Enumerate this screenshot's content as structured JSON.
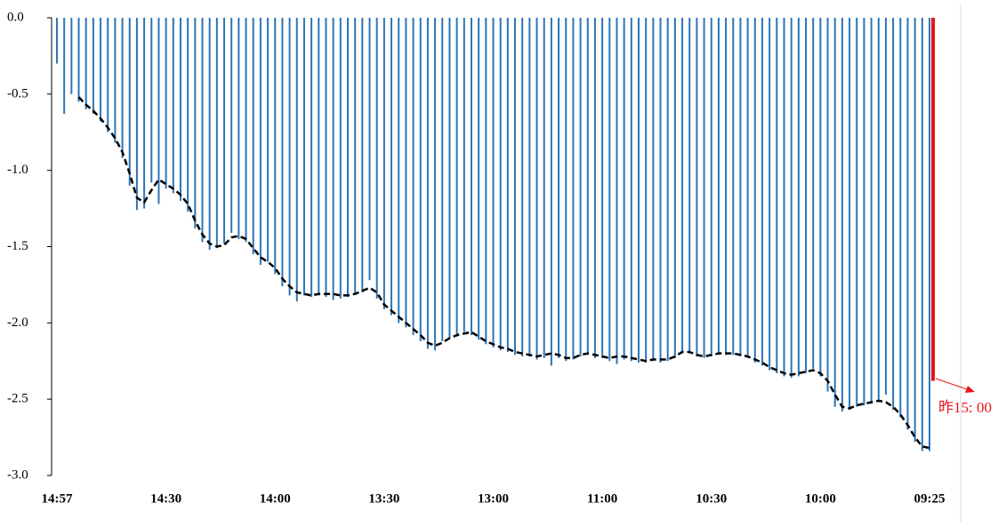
{
  "chart_data": {
    "type": "bar",
    "categories": [
      "14:57",
      null,
      null,
      null,
      null,
      null,
      null,
      null,
      null,
      null,
      null,
      null,
      null,
      null,
      null,
      "14:30",
      null,
      null,
      null,
      null,
      null,
      null,
      null,
      null,
      null,
      null,
      null,
      null,
      null,
      null,
      "14:00",
      null,
      null,
      null,
      null,
      null,
      null,
      null,
      null,
      null,
      null,
      null,
      null,
      null,
      null,
      "13:30",
      null,
      null,
      null,
      null,
      null,
      null,
      null,
      null,
      null,
      null,
      null,
      null,
      null,
      null,
      "13:00",
      null,
      null,
      null,
      null,
      null,
      null,
      null,
      null,
      null,
      null,
      null,
      null,
      null,
      null,
      "11:00",
      null,
      null,
      null,
      null,
      null,
      null,
      null,
      null,
      null,
      null,
      null,
      null,
      null,
      null,
      "10:30",
      null,
      null,
      null,
      null,
      null,
      null,
      null,
      null,
      null,
      null,
      null,
      null,
      null,
      null,
      "10:00",
      null,
      null,
      null,
      null,
      null,
      null,
      null,
      null,
      null,
      null,
      null,
      null,
      null,
      null,
      "09:25"
    ],
    "series": [
      {
        "type": "bar",
        "color": "#2e75b6",
        "values": [
          -0.3,
          -0.63,
          -0.5,
          -0.55,
          -0.6,
          -0.63,
          -0.68,
          -0.75,
          -0.82,
          -0.92,
          -1.1,
          -1.26,
          -1.25,
          -1.08,
          -1.22,
          -1.12,
          -1.15,
          -1.2,
          -1.27,
          -1.38,
          -1.47,
          -1.52,
          -1.51,
          -1.48,
          -1.41,
          -1.45,
          -1.47,
          -1.55,
          -1.62,
          -1.6,
          -1.68,
          -1.76,
          -1.82,
          -1.86,
          -1.82,
          -1.83,
          -1.82,
          -1.83,
          -1.85,
          -1.84,
          -1.83,
          -1.81,
          -1.8,
          -1.72,
          -1.84,
          -1.91,
          -1.95,
          -2.0,
          -2.03,
          -2.08,
          -2.12,
          -2.17,
          -2.18,
          -2.12,
          -2.1,
          -2.09,
          -2.06,
          -2.08,
          -2.11,
          -2.14,
          -2.16,
          -2.18,
          -2.19,
          -2.21,
          -2.22,
          -2.22,
          -2.24,
          -2.23,
          -2.28,
          -2.23,
          -2.25,
          -2.24,
          -2.22,
          -2.21,
          -2.23,
          -2.23,
          -2.25,
          -2.27,
          -2.24,
          -2.25,
          -2.26,
          -2.26,
          -2.25,
          -2.26,
          -2.25,
          -2.23,
          -2.2,
          -2.2,
          -2.22,
          -2.23,
          -2.22,
          -2.21,
          -2.21,
          -2.21,
          -2.22,
          -2.23,
          -2.26,
          -2.28,
          -2.31,
          -2.33,
          -2.35,
          -2.36,
          -2.35,
          -2.33,
          -2.3,
          -2.35,
          -2.45,
          -2.55,
          -2.58,
          -2.57,
          -2.55,
          -2.54,
          -2.53,
          -2.52,
          -2.47,
          -2.57,
          -2.62,
          -2.7,
          -2.78,
          -2.84,
          -2.84
        ]
      },
      {
        "type": "line",
        "color": "#000000",
        "dashed": true,
        "values": [
          null,
          null,
          null,
          -0.52,
          -0.57,
          -0.61,
          -0.66,
          -0.72,
          -0.79,
          -0.88,
          -1.02,
          -1.18,
          -1.21,
          -1.13,
          -1.06,
          -1.09,
          -1.12,
          -1.16,
          -1.22,
          -1.33,
          -1.42,
          -1.48,
          -1.5,
          -1.49,
          -1.44,
          -1.43,
          -1.45,
          -1.51,
          -1.57,
          -1.6,
          -1.64,
          -1.71,
          -1.76,
          -1.8,
          -1.81,
          -1.82,
          -1.81,
          -1.81,
          -1.81,
          -1.82,
          -1.82,
          -1.81,
          -1.79,
          -1.77,
          -1.8,
          -1.88,
          -1.92,
          -1.96,
          -2.0,
          -2.04,
          -2.08,
          -2.13,
          -2.15,
          -2.13,
          -2.1,
          -2.08,
          -2.07,
          -2.06,
          -2.09,
          -2.12,
          -2.14,
          -2.16,
          -2.17,
          -2.19,
          -2.2,
          -2.21,
          -2.22,
          -2.21,
          -2.2,
          -2.21,
          -2.23,
          -2.23,
          -2.21,
          -2.2,
          -2.21,
          -2.22,
          -2.23,
          -2.22,
          -2.22,
          -2.23,
          -2.24,
          -2.25,
          -2.24,
          -2.24,
          -2.24,
          -2.22,
          -2.19,
          -2.19,
          -2.21,
          -2.22,
          -2.21,
          -2.2,
          -2.2,
          -2.2,
          -2.21,
          -2.22,
          -2.24,
          -2.26,
          -2.29,
          -2.31,
          -2.33,
          -2.34,
          -2.33,
          -2.32,
          -2.31,
          -2.33,
          -2.38,
          -2.47,
          -2.55,
          -2.56,
          -2.54,
          -2.53,
          -2.52,
          -2.51,
          -2.52,
          -2.55,
          -2.6,
          -2.67,
          -2.75,
          -2.81,
          -2.82
        ]
      }
    ],
    "annotation": {
      "text": "昨15: 00",
      "value": -2.38,
      "color": "#e8141a"
    },
    "ylim": [
      -3.0,
      0.0
    ],
    "yticks": [
      {
        "value": 0.0,
        "label": "0.0"
      },
      -0.5,
      {
        "value": -1.0,
        "label": "-1.0"
      },
      -1.5,
      {
        "value": -2.0,
        "label": "-2.0"
      },
      -2.5,
      {
        "value": -3.0,
        "label": "-3.0"
      }
    ]
  }
}
